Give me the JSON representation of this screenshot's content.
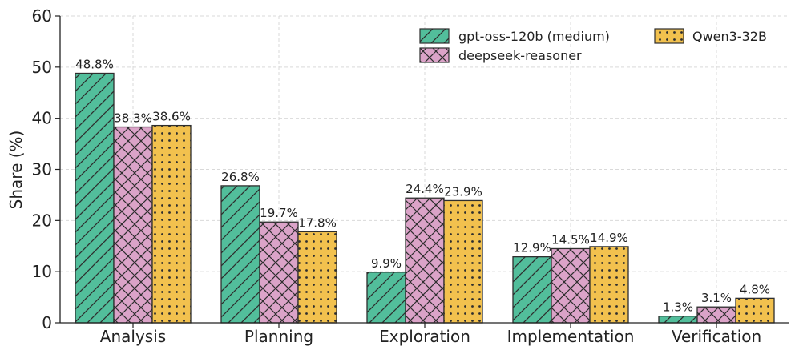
{
  "chart_data": {
    "type": "bar",
    "title": "",
    "xlabel": "",
    "ylabel": "Share (%)",
    "ylim": [
      0,
      60
    ],
    "yticks": [
      0,
      10,
      20,
      30,
      40,
      50,
      60
    ],
    "grid": true,
    "legend_position": "top-right",
    "categories": [
      "Analysis",
      "Planning",
      "Exploration",
      "Implementation",
      "Verification"
    ],
    "series": [
      {
        "name": "gpt-oss-120b (medium)",
        "color": "#52be9b",
        "pattern": "diagonal-hatch",
        "values": [
          48.8,
          26.8,
          9.9,
          12.9,
          1.3
        ],
        "labels": [
          "48.8%",
          "26.8%",
          "9.9%",
          "12.9%",
          "1.3%"
        ]
      },
      {
        "name": "deepseek-reasoner",
        "color": "#dba3c8",
        "pattern": "cross-hatch",
        "values": [
          38.3,
          19.7,
          24.4,
          14.5,
          3.1
        ],
        "labels": [
          "38.3%",
          "19.7%",
          "24.4%",
          "14.5%",
          "3.1%"
        ]
      },
      {
        "name": "Qwen3-32B",
        "color": "#f2c14e",
        "pattern": "dots",
        "values": [
          38.6,
          17.8,
          23.9,
          14.9,
          4.8
        ],
        "labels": [
          "38.6%",
          "17.8%",
          "23.9%",
          "14.9%",
          "4.8%"
        ]
      }
    ]
  }
}
